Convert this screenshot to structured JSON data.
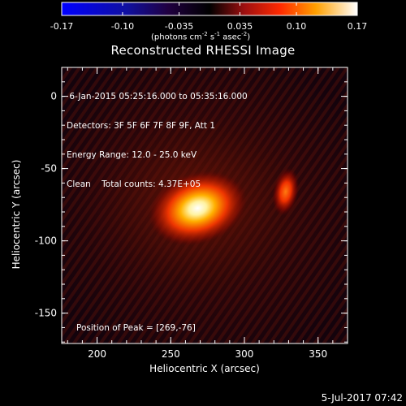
{
  "colorbar": {
    "ticks": [
      "-0.17",
      "-0.10",
      "-0.035",
      "0.035",
      "0.10",
      "0.17"
    ],
    "unit_prefix": "(photons cm",
    "unit_exp1": "-2",
    "unit_mid": " s",
    "unit_exp2": "-1",
    "unit_mid2": " asec",
    "unit_exp3": "-2",
    "unit_suffix": ")",
    "range": [
      -0.17,
      0.17
    ]
  },
  "chart_data": {
    "type": "heatmap",
    "title": "Reconstructed RHESSI Image",
    "xlabel": "Heliocentric X (arcsec)",
    "ylabel": "Heliocentric Y (arcsec)",
    "xlim": [
      176,
      370
    ],
    "ylim": [
      -171,
      20
    ],
    "x_ticks": [
      "200",
      "250",
      "300",
      "350"
    ],
    "y_ticks": [
      "0",
      "-50",
      "-100",
      "-150"
    ],
    "info_lines": [
      " 6-Jan-2015 05:25:16.000 to 05:35:16.000",
      "Detectors: 3F 5F 6F 7F 8F 9F, Att 1",
      "Energy Range: 12.0 - 25.0 keV",
      "Clean    Total counts: 4.37E+05"
    ],
    "peak_label": "Position of Peak = [269,-76]",
    "sources": [
      {
        "x": 269,
        "y": -76,
        "peak": 0.17
      },
      {
        "x": 328,
        "y": -66,
        "peak": 0.1
      }
    ]
  },
  "footer": {
    "date": "5-Jul-2017 07:42"
  }
}
